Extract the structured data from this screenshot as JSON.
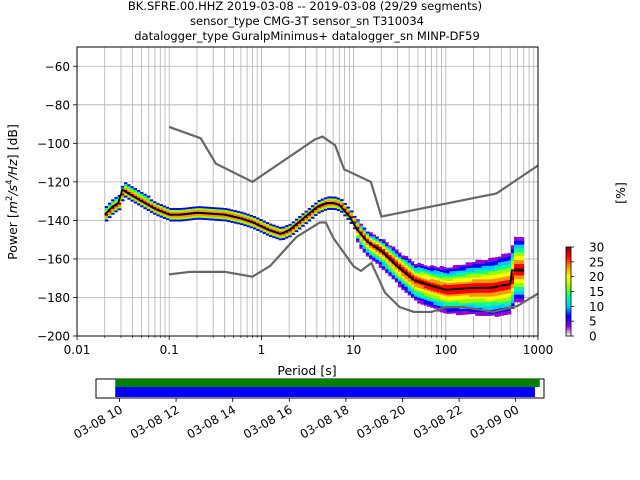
{
  "title_lines": [
    "BK.SFRE.00.HHZ   2019-03-08 -- 2019-03-08  (29/29 segments)",
    "sensor_type CMG-3T sensor_sn T310034",
    "datalogger_type GuralpMinimus+ datalogger_sn MINP-DF59"
  ],
  "chart_data": {
    "type": "heatmap",
    "xlabel": "Period [s]",
    "ylabel_parts": [
      "Power [",
      "m",
      "2",
      "/s",
      "4",
      "/Hz",
      "] [dB]"
    ],
    "x_scale": "log",
    "xlim": [
      0.01,
      1000
    ],
    "ylim": [
      -200,
      -50
    ],
    "x_ticks": [
      0.01,
      0.1,
      1,
      10,
      100,
      1000
    ],
    "x_tick_labels": [
      "0.01",
      "0.1",
      "1",
      "10",
      "100",
      "1000"
    ],
    "y_ticks": [
      -200,
      -180,
      -160,
      -140,
      -120,
      -100,
      -80,
      -60
    ],
    "y_tick_labels": [
      "−200",
      "−180",
      "−160",
      "−140",
      "−120",
      "−100",
      "−80",
      "−60"
    ],
    "grid": true,
    "colorbar": {
      "label": "[%]",
      "min": 0,
      "max": 30,
      "ticks": [
        0,
        5,
        10,
        15,
        20,
        25,
        30
      ],
      "tick_labels": [
        "0",
        "5",
        "10",
        "15",
        "20",
        "25",
        "30"
      ],
      "colors": [
        "#ffffff",
        "#9400d3",
        "#0000ff",
        "#00c8ff",
        "#00ff96",
        "#96ff00",
        "#ffff00",
        "#ff9600",
        "#ff0000",
        "#8b0000"
      ]
    },
    "nhnm": [
      [
        0.1,
        -91.5
      ],
      [
        0.22,
        -97.4
      ],
      [
        0.32,
        -110.5
      ],
      [
        0.8,
        -120
      ],
      [
        3.8,
        -98
      ],
      [
        4.6,
        -96.5
      ],
      [
        6.3,
        -101
      ],
      [
        7.9,
        -113.5
      ],
      [
        15.4,
        -120
      ],
      [
        20,
        -138
      ],
      [
        354.8,
        -126
      ],
      [
        1000,
        -111.5
      ]
    ],
    "nlnm": [
      [
        0.1,
        -168
      ],
      [
        0.17,
        -166.7
      ],
      [
        0.4,
        -166.7
      ],
      [
        0.8,
        -169.2
      ],
      [
        1.24,
        -163.7
      ],
      [
        2.4,
        -148.6
      ],
      [
        4.3,
        -141.1
      ],
      [
        5,
        -141.1
      ],
      [
        6,
        -149
      ],
      [
        10,
        -163.8
      ],
      [
        12,
        -166.2
      ],
      [
        15.6,
        -162.1
      ],
      [
        21.9,
        -177.5
      ],
      [
        31.6,
        -185
      ],
      [
        45,
        -187.5
      ],
      [
        70,
        -187.5
      ],
      [
        101,
        -185
      ],
      [
        154,
        -185
      ],
      [
        328,
        -187.5
      ],
      [
        600,
        -184.4
      ],
      [
        1000,
        -178
      ]
    ],
    "mode_line": [
      [
        0.02,
        -137
      ],
      [
        0.024,
        -133
      ],
      [
        0.028,
        -131
      ],
      [
        0.031,
        -124
      ],
      [
        0.036,
        -126
      ],
      [
        0.05,
        -130
      ],
      [
        0.07,
        -134
      ],
      [
        0.1,
        -137
      ],
      [
        0.13,
        -137
      ],
      [
        0.2,
        -136
      ],
      [
        0.4,
        -137
      ],
      [
        0.6,
        -139
      ],
      [
        0.8,
        -141
      ],
      [
        1.2,
        -145
      ],
      [
        1.6,
        -147
      ],
      [
        2,
        -145
      ],
      [
        3,
        -138
      ],
      [
        4,
        -133
      ],
      [
        5,
        -131
      ],
      [
        6,
        -131
      ],
      [
        7,
        -132
      ],
      [
        9,
        -138
      ],
      [
        11,
        -145
      ],
      [
        14,
        -151
      ],
      [
        20,
        -156
      ],
      [
        30,
        -164
      ],
      [
        45,
        -171
      ],
      [
        70,
        -174
      ],
      [
        100,
        -176
      ],
      [
        200,
        -175
      ],
      [
        300,
        -175
      ],
      [
        500,
        -173
      ],
      [
        520,
        -166
      ],
      [
        700,
        -166
      ]
    ],
    "timeline": {
      "tick_labels": [
        "03-08 10",
        "03-08 12",
        "03-08 14",
        "03-08 16",
        "03-08 18",
        "03-08 20",
        "03-08 22",
        "03-09 00"
      ],
      "tick_hours": [
        10,
        12,
        14,
        16,
        18,
        20,
        22,
        24
      ],
      "hour_range": [
        9.17,
        25.0
      ],
      "data_span": [
        9.85,
        24.68
      ],
      "segment_span": [
        9.85,
        24.85
      ],
      "data_color": "#0000ff",
      "segment_color": "#008000"
    }
  }
}
